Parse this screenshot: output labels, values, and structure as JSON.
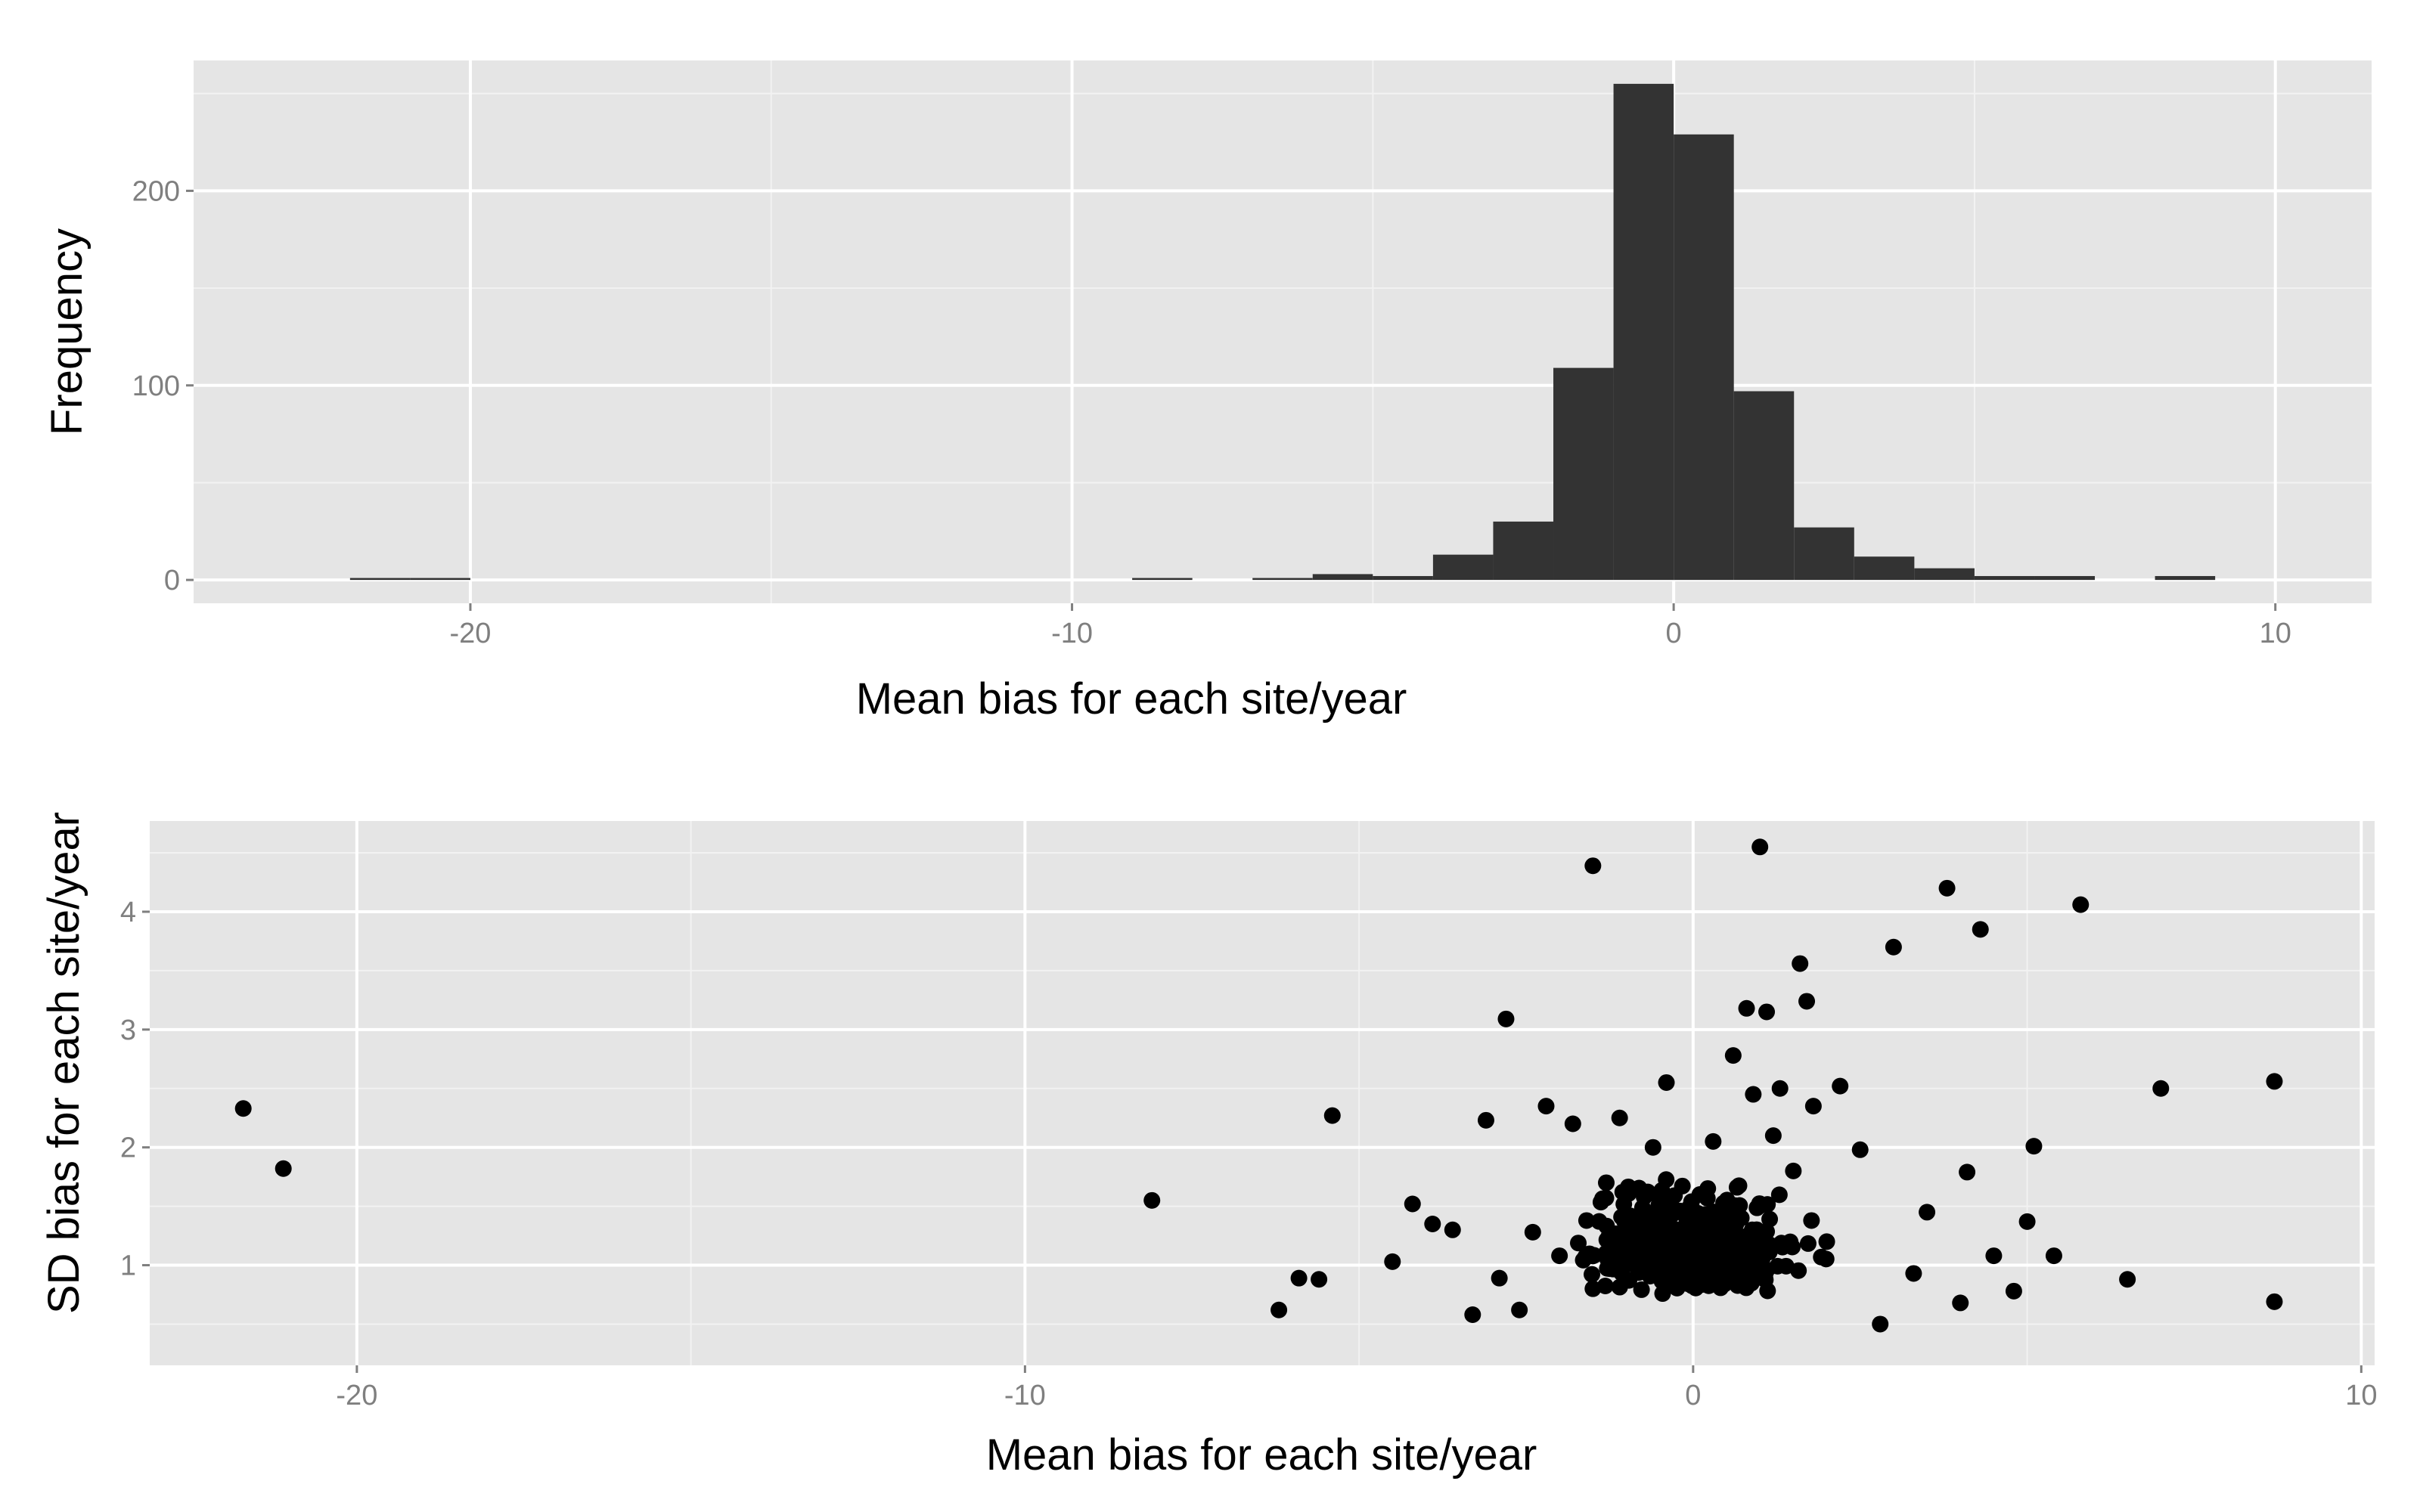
{
  "colors": {
    "panel_bg": "#e5e5e5",
    "grid_major": "#ffffff",
    "grid_minor": "#f2f2f2",
    "bar_fill": "#333333",
    "point_fill": "#000000",
    "tick_text": "#7f7f7f"
  },
  "chart_data": [
    {
      "type": "bar",
      "subtype": "histogram",
      "xlabel": "Mean bias for each site/year",
      "ylabel": "Frequency",
      "xlim": [
        -24.6,
        11.6
      ],
      "ylim": [
        -12,
        267
      ],
      "grid": true,
      "xticks": [
        -20,
        -10,
        0,
        10
      ],
      "xtick_labels": [
        "-20",
        "-10",
        "0",
        "10"
      ],
      "yticks": [
        0,
        100,
        200
      ],
      "ytick_labels": [
        "0",
        "100",
        "200"
      ],
      "bin_width": 1,
      "bins": [
        {
          "x0": -22,
          "x1": -21,
          "count": 1
        },
        {
          "x0": -21,
          "x1": -20,
          "count": 1
        },
        {
          "x0": -9,
          "x1": -8,
          "count": 1
        },
        {
          "x0": -7,
          "x1": -6,
          "count": 1
        },
        {
          "x0": -6,
          "x1": -5,
          "count": 3
        },
        {
          "x0": -5,
          "x1": -4,
          "count": 2
        },
        {
          "x0": -4,
          "x1": -3,
          "count": 13
        },
        {
          "x0": -3,
          "x1": -2,
          "count": 30
        },
        {
          "x0": -2,
          "x1": -1,
          "count": 109
        },
        {
          "x0": -1,
          "x1": 0,
          "count": 255
        },
        {
          "x0": 0,
          "x1": 1,
          "count": 229
        },
        {
          "x0": 1,
          "x1": 2,
          "count": 97
        },
        {
          "x0": 2,
          "x1": 3,
          "count": 27
        },
        {
          "x0": 3,
          "x1": 4,
          "count": 12
        },
        {
          "x0": 4,
          "x1": 5,
          "count": 6
        },
        {
          "x0": 5,
          "x1": 6,
          "count": 2
        },
        {
          "x0": 6,
          "x1": 7,
          "count": 2
        },
        {
          "x0": 8,
          "x1": 9,
          "count": 2
        }
      ]
    },
    {
      "type": "scatter",
      "xlabel": "Mean bias for each site/year",
      "ylabel": "SD bias for each site/year",
      "xlim": [
        -23.1,
        10.2
      ],
      "ylim": [
        0.15,
        4.77
      ],
      "grid": true,
      "xticks": [
        -20,
        -10,
        0,
        10
      ],
      "xtick_labels": [
        "-20",
        "-10",
        "0",
        "10"
      ],
      "yticks": [
        1,
        2,
        3,
        4
      ],
      "ytick_labels": [
        "1",
        "2",
        "3",
        "4"
      ],
      "points": [
        [
          -21.7,
          2.33
        ],
        [
          -21.1,
          1.82
        ],
        [
          -8.1,
          1.55
        ],
        [
          -6.2,
          0.62
        ],
        [
          -5.9,
          0.89
        ],
        [
          -5.6,
          0.88
        ],
        [
          -5.4,
          2.27
        ],
        [
          -4.5,
          1.03
        ],
        [
          -4.2,
          1.52
        ],
        [
          -3.9,
          1.35
        ],
        [
          -3.6,
          1.3
        ],
        [
          -3.3,
          0.58
        ],
        [
          -3.1,
          2.23
        ],
        [
          -2.9,
          0.89
        ],
        [
          -2.8,
          3.09
        ],
        [
          -2.6,
          0.62
        ],
        [
          -2.4,
          1.28
        ],
        [
          -2.2,
          2.35
        ],
        [
          -2.0,
          1.08
        ],
        [
          -1.8,
          2.2
        ],
        [
          -1.5,
          4.39
        ],
        [
          -1.3,
          1.7
        ],
        [
          -1.1,
          2.25
        ],
        [
          -0.8,
          1.15
        ],
        [
          -0.6,
          2.0
        ],
        [
          -0.4,
          2.55
        ],
        [
          -0.2,
          1.3
        ],
        [
          0.1,
          1.6
        ],
        [
          0.3,
          2.05
        ],
        [
          0.5,
          1.02
        ],
        [
          0.6,
          2.78
        ],
        [
          0.8,
          3.18
        ],
        [
          0.9,
          2.45
        ],
        [
          1.0,
          4.55
        ],
        [
          1.1,
          3.15
        ],
        [
          1.2,
          2.1
        ],
        [
          1.3,
          2.5
        ],
        [
          1.5,
          1.8
        ],
        [
          1.6,
          3.56
        ],
        [
          1.7,
          3.24
        ],
        [
          1.8,
          2.35
        ],
        [
          2.0,
          1.2
        ],
        [
          2.2,
          2.52
        ],
        [
          2.5,
          1.98
        ],
        [
          2.8,
          0.5
        ],
        [
          3.0,
          3.7
        ],
        [
          3.3,
          0.93
        ],
        [
          3.5,
          1.45
        ],
        [
          3.8,
          4.2
        ],
        [
          4.0,
          0.68
        ],
        [
          4.1,
          1.79
        ],
        [
          4.3,
          3.85
        ],
        [
          4.5,
          1.08
        ],
        [
          4.8,
          0.78
        ],
        [
          5.0,
          1.37
        ],
        [
          5.1,
          2.01
        ],
        [
          5.4,
          1.08
        ],
        [
          5.8,
          4.06
        ],
        [
          6.5,
          0.88
        ],
        [
          7.0,
          2.5
        ],
        [
          8.7,
          2.56
        ],
        [
          8.7,
          0.69
        ]
      ],
      "point_cloud_note": "plus several hundred points densely clustered around x in [-3, 3], y in [0.4, 2.0]"
    }
  ]
}
